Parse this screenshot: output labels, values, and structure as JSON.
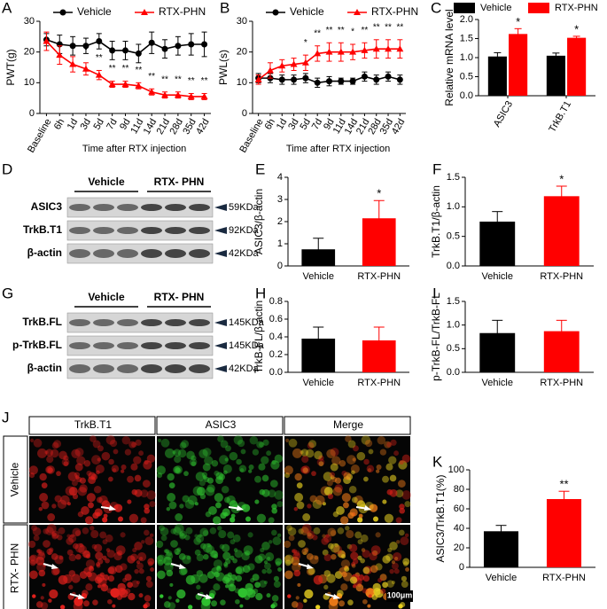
{
  "chart_data": [
    {
      "panel": "A",
      "type": "line",
      "y_label": "PWT(g)",
      "x_label": "Time after RTX injection",
      "categories": [
        "Baseline",
        "6h",
        "1d",
        "3d",
        "5d",
        "7d",
        "9d",
        "11d",
        "14d",
        "21d",
        "28d",
        "35d",
        "42d"
      ],
      "ylim": [
        0,
        30
      ],
      "yticks": [
        0,
        10,
        20,
        30
      ],
      "series": [
        {
          "name": "Vehicle",
          "color": "#000000",
          "marker": "circle",
          "values": [
            24,
            22.5,
            22,
            22,
            23.5,
            20.5,
            20.5,
            19.5,
            23,
            21,
            22,
            22.5,
            22.5
          ],
          "errors": [
            2,
            3,
            3,
            2.5,
            2.5,
            3,
            3,
            3,
            3.5,
            3,
            3,
            3.5,
            4
          ],
          "annotations": [
            null,
            null,
            null,
            null,
            null,
            null,
            null,
            null,
            null,
            null,
            null,
            null,
            null
          ]
        },
        {
          "name": "RTX-PHN",
          "color": "#ff0000",
          "marker": "triangle",
          "values": [
            23.5,
            19,
            16,
            14.5,
            12.5,
            9.5,
            9.5,
            9,
            7,
            6,
            6,
            5.5,
            5.5
          ],
          "errors": [
            3,
            3,
            2.5,
            2,
            1.5,
            1,
            1,
            1,
            1,
            1,
            1,
            1,
            1
          ],
          "annotations": [
            null,
            null,
            null,
            "*",
            "**",
            "**",
            "**",
            "**",
            "**",
            "**",
            "**",
            "**",
            "**"
          ]
        }
      ]
    },
    {
      "panel": "B",
      "type": "line",
      "y_label": "PWL(s)",
      "x_label": "Time after RTX injection",
      "categories": [
        "Baseline",
        "6h",
        "1d",
        "3d",
        "5d",
        "7d",
        "9d",
        "11d",
        "14d",
        "21d",
        "28d",
        "35d",
        "42d"
      ],
      "ylim": [
        0,
        30
      ],
      "yticks": [
        0,
        10,
        20,
        30
      ],
      "series": [
        {
          "name": "Vehicle",
          "color": "#000000",
          "marker": "circle",
          "values": [
            11.5,
            11.5,
            11,
            11,
            11.5,
            10,
            10.5,
            10.5,
            10.5,
            12,
            11,
            12,
            11
          ],
          "errors": [
            1.5,
            1.5,
            1.5,
            1.5,
            1.5,
            1.5,
            1.5,
            1,
            1,
            1.5,
            1.5,
            1.5,
            1.5
          ],
          "annotations": [
            null,
            null,
            null,
            null,
            null,
            null,
            null,
            null,
            null,
            null,
            null,
            null,
            null
          ]
        },
        {
          "name": "RTX-PHN",
          "color": "#ff0000",
          "marker": "triangle",
          "values": [
            11,
            14,
            15.5,
            16,
            16.5,
            19.5,
            20,
            20,
            20,
            20.5,
            21,
            21,
            21
          ],
          "errors": [
            1.5,
            2.5,
            2,
            2,
            2.5,
            2.5,
            3,
            3,
            2.5,
            2.5,
            3,
            3,
            3
          ],
          "annotations": [
            null,
            null,
            null,
            null,
            "*",
            "**",
            "**",
            "**",
            "*",
            "**",
            "**",
            "**",
            "**"
          ]
        }
      ]
    },
    {
      "panel": "C",
      "type": "grouped_bar",
      "y_label": "Relative mRNA level",
      "categories": [
        "ASIC3",
        "TrkB.T1"
      ],
      "ylim": [
        0,
        2
      ],
      "yticks": [
        {
          "value": 0,
          "label": "0.0"
        },
        0.5,
        {
          "value": 1,
          "label": "1.0"
        },
        1.5,
        {
          "value": 2,
          "label": "2.0"
        }
      ],
      "series": [
        {
          "name": "Vehicle",
          "color": "#000000",
          "values": [
            1.03,
            1.05
          ],
          "errors": [
            0.1,
            0.07
          ],
          "annotations": [
            null,
            null
          ]
        },
        {
          "name": "RTX-PHN",
          "color": "#ff0000",
          "values": [
            1.62,
            1.52
          ],
          "errors": [
            0.14,
            0.04
          ],
          "annotations": [
            "*",
            "*"
          ]
        }
      ]
    },
    {
      "panel": "E",
      "type": "bar",
      "y_label": "ASIC3/β-actin",
      "categories": [
        "Vehicle",
        "RTX-PHN"
      ],
      "values": [
        0.75,
        2.15
      ],
      "errors": [
        0.5,
        0.8
      ],
      "colors": [
        "#000000",
        "#ff0000"
      ],
      "annotations": [
        null,
        "*"
      ],
      "ylim": [
        0,
        4
      ],
      "yticks": [
        0,
        1,
        2,
        3,
        4
      ]
    },
    {
      "panel": "F",
      "type": "bar",
      "y_label": "TrkB.T1/β-actin",
      "categories": [
        "Vehicle",
        "RTX-PHN"
      ],
      "values": [
        0.75,
        1.18
      ],
      "errors": [
        0.17,
        0.17
      ],
      "colors": [
        "#000000",
        "#ff0000"
      ],
      "annotations": [
        null,
        "*"
      ],
      "ylim": [
        0,
        1.5
      ],
      "yticks": [
        {
          "value": 0,
          "label": "0.0"
        },
        0.5,
        {
          "value": 1,
          "label": "1.0"
        },
        1.5
      ]
    },
    {
      "panel": "H",
      "type": "bar",
      "y_label": "TrkB-FL/β-actin",
      "categories": [
        "Vehicle",
        "RTX-PHN"
      ],
      "values": [
        0.38,
        0.36
      ],
      "errors": [
        0.13,
        0.15
      ],
      "colors": [
        "#000000",
        "#ff0000"
      ],
      "annotations": [
        null,
        null
      ],
      "ylim": [
        0,
        0.8
      ],
      "yticks": [
        {
          "value": 0,
          "label": "0.0"
        },
        0.2,
        0.4,
        0.6,
        0.8
      ]
    },
    {
      "panel": "I",
      "type": "bar",
      "y_label": "p-TrkB-FL/TrkB-FL",
      "categories": [
        "Vehicle",
        "RTX-PHN"
      ],
      "values": [
        0.83,
        0.87
      ],
      "errors": [
        0.27,
        0.23
      ],
      "colors": [
        "#000000",
        "#ff0000"
      ],
      "annotations": [
        null,
        null
      ],
      "ylim": [
        0,
        1.5
      ],
      "yticks": [
        {
          "value": 0,
          "label": "0.0"
        },
        0.5,
        {
          "value": 1,
          "label": "1.0"
        },
        1.5
      ]
    },
    {
      "panel": "K",
      "type": "bar",
      "y_label": "ASIC3/TrkB.T1(%)",
      "categories": [
        "Vehicle",
        "RTX-PHN"
      ],
      "values": [
        37,
        70
      ],
      "errors": [
        6,
        8
      ],
      "colors": [
        "#000000",
        "#ff0000"
      ],
      "annotations": [
        null,
        "**"
      ],
      "ylim": [
        0,
        100
      ],
      "yticks": [
        0,
        20,
        40,
        60,
        80,
        100
      ]
    }
  ],
  "blots": [
    {
      "panel": "D",
      "groups": [
        "Vehicle",
        "RTX- PHN"
      ],
      "rows": [
        {
          "label": "ASIC3",
          "size": "59KDa"
        },
        {
          "label": "TrkB.T1",
          "size": "92KDa"
        },
        {
          "label": "β-actin",
          "size": "42KDa"
        }
      ]
    },
    {
      "panel": "G",
      "groups": [
        "Vehicle",
        "RTX- PHN"
      ],
      "rows": [
        {
          "label": "TrkB.FL",
          "size": "145KDa"
        },
        {
          "label": "p-TrkB.FL",
          "size": "145KDa"
        },
        {
          "label": "β-actin",
          "size": "42KDa"
        }
      ]
    }
  ],
  "micrographs": {
    "panel": "J",
    "columns": [
      "TrkB.T1",
      "ASIC3",
      "Merge"
    ],
    "rows": [
      "Vehicle",
      "RTX- PHN"
    ],
    "scale_bar": "100μm"
  }
}
